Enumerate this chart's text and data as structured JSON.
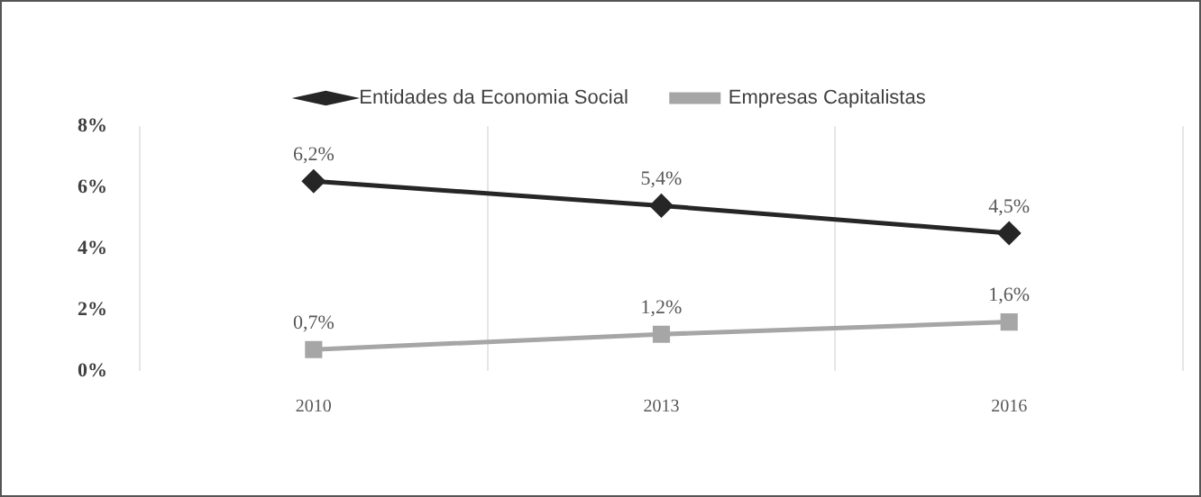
{
  "chart_data": {
    "type": "line",
    "categories": [
      "2010",
      "2013",
      "2016"
    ],
    "series": [
      {
        "name": "Entidades da Economia Social",
        "color": "#262626",
        "values": [
          6.2,
          5.4,
          4.5
        ],
        "value_labels": [
          "6,2%",
          "5,4%",
          "4,5%"
        ],
        "marker": "diamond"
      },
      {
        "name": "Empresas Capitalistas",
        "color": "#a6a6a6",
        "values": [
          0.7,
          1.2,
          1.6
        ],
        "value_labels": [
          "0,7%",
          "1,2%",
          "1,6%"
        ],
        "marker": "square"
      }
    ],
    "ylim": [
      0,
      8
    ],
    "yticks": [
      {
        "value": 0,
        "label": "0%"
      },
      {
        "value": 2,
        "label": "2%"
      },
      {
        "value": 4,
        "label": "4%"
      },
      {
        "value": 6,
        "label": "6%"
      },
      {
        "value": 8,
        "label": "8%"
      }
    ],
    "grid": "x",
    "legend": "top",
    "line_style": "solid"
  }
}
